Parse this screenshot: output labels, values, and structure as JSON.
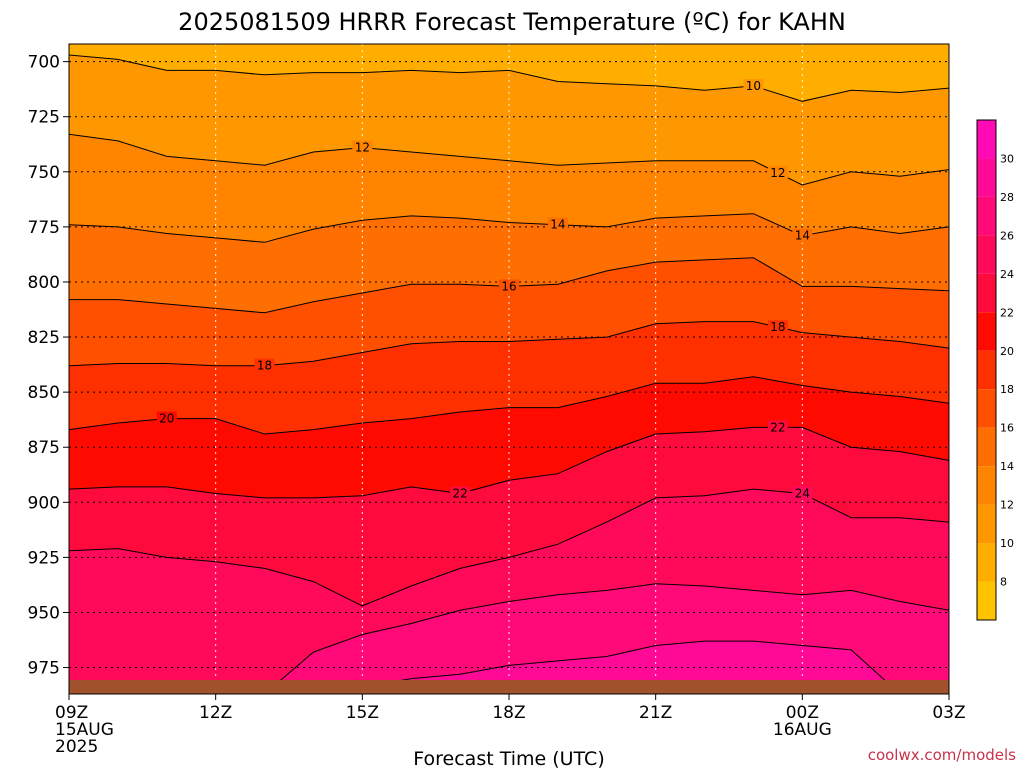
{
  "chart_data": {
    "type": "heatmap",
    "title": "2025081509 HRRR Forecast Temperature (ºC) for KAHN",
    "xlabel": "Forecast Time (UTC)",
    "ylabel": "",
    "credit": "coolwx.com/models",
    "x_ticks": [
      {
        "x": 0,
        "lines": [
          "09Z",
          "15AUG",
          "2025"
        ]
      },
      {
        "x": 3,
        "lines": [
          "12Z"
        ]
      },
      {
        "x": 6,
        "lines": [
          "15Z"
        ]
      },
      {
        "x": 9,
        "lines": [
          "18Z"
        ]
      },
      {
        "x": 12,
        "lines": [
          "21Z"
        ]
      },
      {
        "x": 15,
        "lines": [
          "00Z",
          "16AUG"
        ]
      },
      {
        "x": 18,
        "lines": [
          "03Z"
        ]
      }
    ],
    "xlim": [
      0,
      18
    ],
    "y_ticks": [
      700,
      725,
      750,
      775,
      800,
      825,
      850,
      875,
      900,
      925,
      950,
      975
    ],
    "ylim": [
      987,
      692
    ],
    "colorbar": {
      "ticks": [
        8,
        10,
        12,
        14,
        16,
        18,
        20,
        22,
        24,
        26,
        28,
        30
      ],
      "range": [
        6,
        32
      ],
      "colors": [
        "#ffc400",
        "#ffae00",
        "#ff9800",
        "#ff8400",
        "#ff6e00",
        "#ff5000",
        "#ff3000",
        "#ff0a00",
        "#ff0a3c",
        "#ff0a5a",
        "#ff0a78",
        "#ff0a96",
        "#ff0ab4",
        "#ff0ad7"
      ]
    },
    "contour_levels": [
      10,
      12,
      14,
      16,
      18,
      20,
      22,
      24,
      26,
      28
    ],
    "time_steps": [
      0,
      1,
      2,
      3,
      4,
      5,
      6,
      7,
      8,
      9,
      10,
      11,
      12,
      13,
      14,
      15,
      16,
      17,
      18
    ],
    "isotherms": [
      {
        "level": 10,
        "p": [
          697,
          699,
          704,
          704,
          706,
          705,
          705,
          704,
          705,
          704,
          709,
          710,
          711,
          713,
          711,
          718,
          713,
          714,
          712
        ]
      },
      {
        "level": 12,
        "p": [
          733,
          736,
          743,
          745,
          747,
          741,
          739,
          741,
          743,
          745,
          747,
          746,
          745,
          745,
          745,
          756,
          750,
          752,
          749
        ]
      },
      {
        "level": 14,
        "p": [
          774,
          775,
          778,
          780,
          782,
          776,
          772,
          770,
          771,
          773,
          774,
          775,
          771,
          770,
          769,
          779,
          775,
          778,
          775
        ]
      },
      {
        "level": 16,
        "p": [
          808,
          808,
          810,
          812,
          814,
          809,
          805,
          801,
          801,
          802,
          801,
          795,
          791,
          790,
          789,
          802,
          802,
          803,
          804
        ]
      },
      {
        "level": 18,
        "p": [
          838,
          837,
          837,
          838,
          838,
          836,
          832,
          828,
          827,
          827,
          826,
          825,
          819,
          818,
          818,
          823,
          825,
          827,
          830
        ]
      },
      {
        "level": 20,
        "p": [
          867,
          864,
          862,
          862,
          869,
          867,
          864,
          862,
          859,
          857,
          857,
          852,
          846,
          846,
          843,
          847,
          850,
          852,
          855
        ]
      },
      {
        "level": 22,
        "p": [
          894,
          893,
          893,
          896,
          898,
          898,
          897,
          893,
          896,
          890,
          887,
          877,
          869,
          868,
          866,
          866,
          875,
          877,
          881
        ]
      },
      {
        "level": 24,
        "p": [
          922,
          921,
          925,
          927,
          930,
          936,
          947,
          938,
          930,
          925,
          919,
          909,
          898,
          897,
          894,
          896,
          907,
          907,
          909
        ]
      },
      {
        "level": 26,
        "p": [
          987,
          983,
          983,
          987,
          987,
          968,
          960,
          955,
          949,
          945,
          942,
          940,
          937,
          938,
          940,
          942,
          940,
          945,
          949
        ]
      },
      {
        "level": 28,
        "p": [
          987,
          987,
          987,
          987,
          987,
          987,
          984,
          980,
          978,
          974,
          972,
          970,
          965,
          963,
          963,
          965,
          967,
          987,
          987
        ]
      }
    ],
    "contour_labels": [
      {
        "level": 10,
        "t": 14.0
      },
      {
        "level": 12,
        "t": 6.0
      },
      {
        "level": 12,
        "t": 14.5
      },
      {
        "level": 14,
        "t": 10.0
      },
      {
        "level": 14,
        "t": 15.0
      },
      {
        "level": 16,
        "t": 9.0
      },
      {
        "level": 18,
        "t": 14.5
      },
      {
        "level": 18,
        "t": 4.0
      },
      {
        "level": 20,
        "t": 2.0
      },
      {
        "level": 22,
        "t": 8.0
      },
      {
        "level": 22,
        "t": 14.5
      },
      {
        "level": 24,
        "t": 15.0
      }
    ],
    "surface_color": "#a0522d",
    "grid": true
  }
}
